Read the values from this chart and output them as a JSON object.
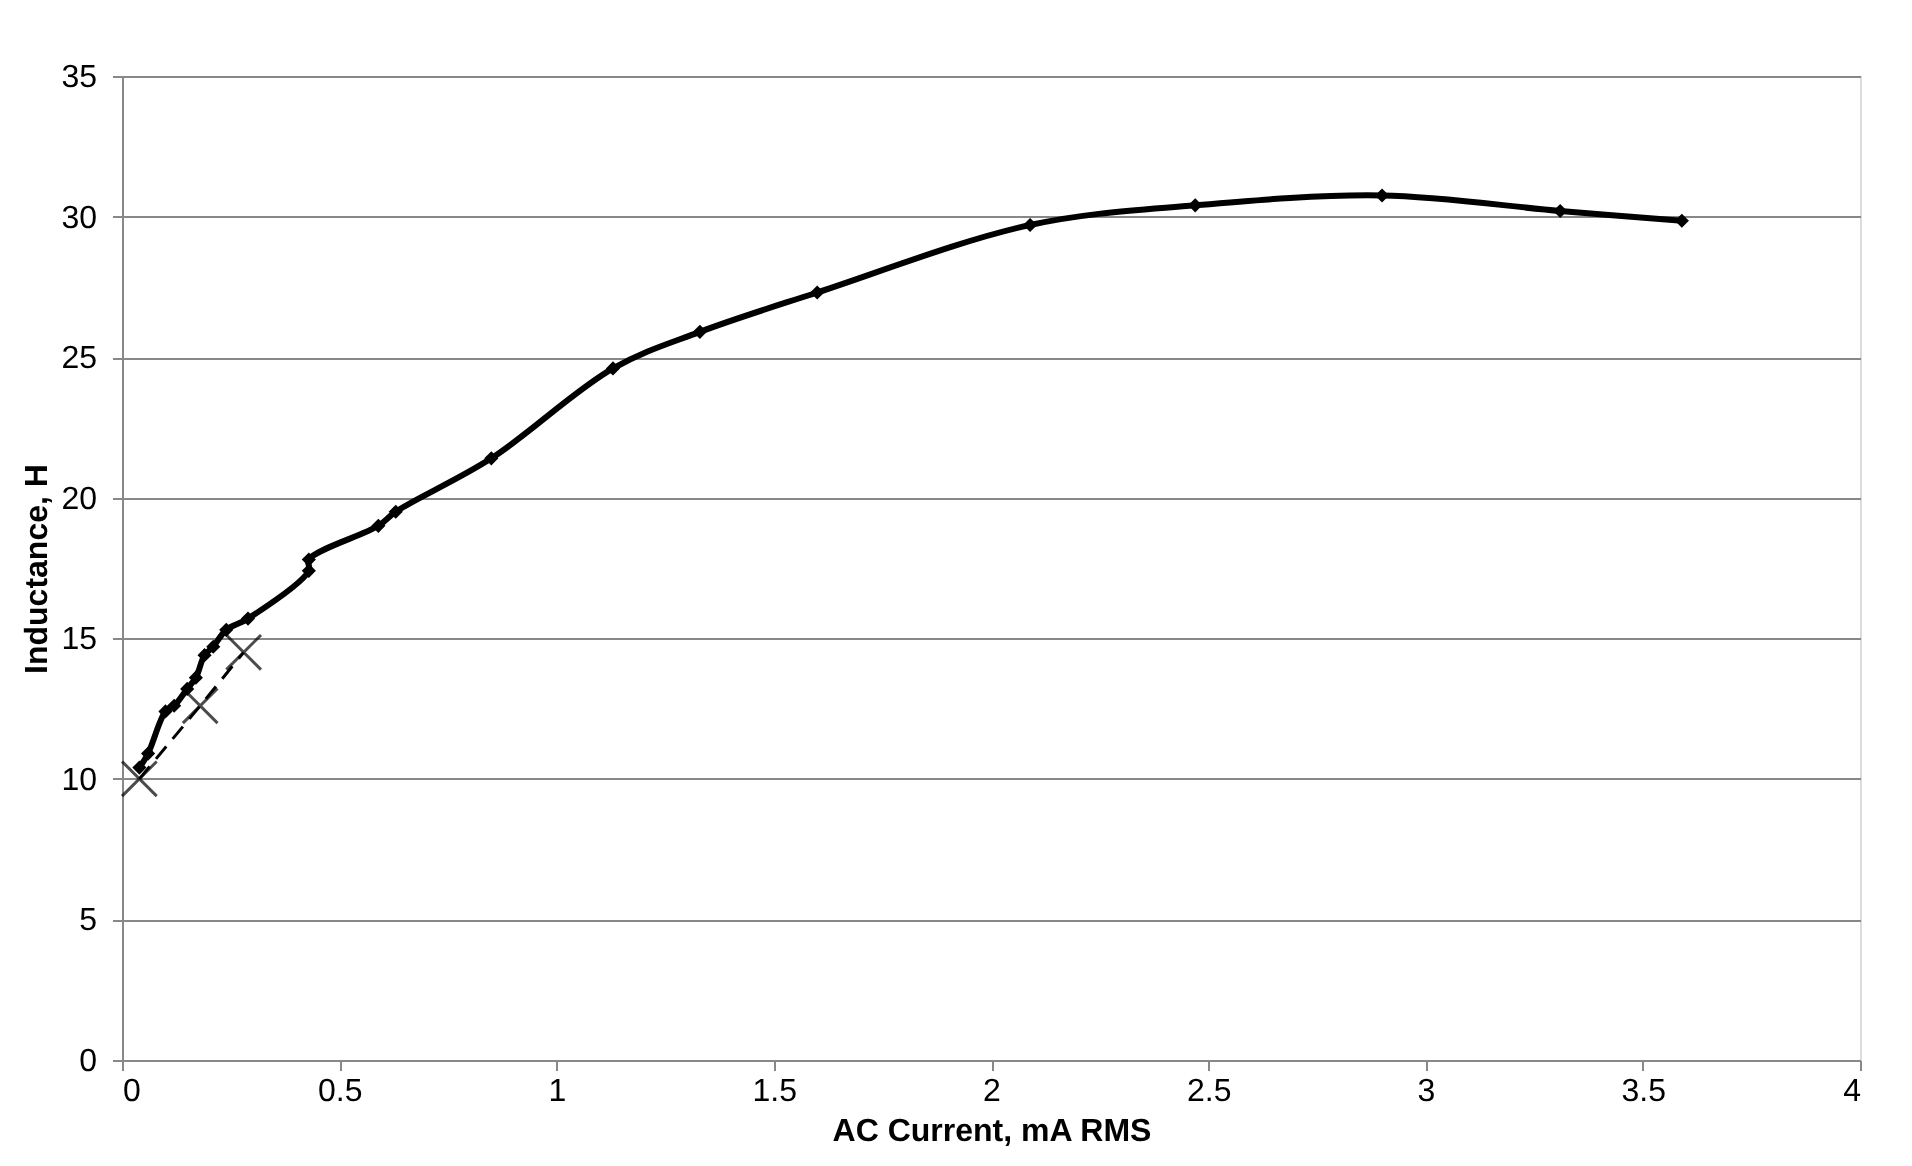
{
  "chart_data": {
    "type": "line",
    "xlabel": "AC Current, mA RMS",
    "ylabel": "Inductance, H",
    "xlim": [
      0,
      4
    ],
    "xticks": [
      0,
      0.5,
      1,
      1.5,
      2,
      2.5,
      3,
      3.5,
      4
    ],
    "ylim": [
      0,
      35
    ],
    "yticks": [
      0,
      5,
      10,
      15,
      20,
      25,
      30,
      35
    ],
    "grid": "y",
    "series": [
      {
        "color": "#000000",
        "marker": "diamond",
        "line_style": "solid",
        "x": [
          0.04,
          0.06,
          0.1,
          0.12,
          0.15,
          0.17,
          0.19,
          0.21,
          0.24,
          0.29,
          0.43,
          0.43,
          0.59,
          0.63,
          0.85,
          1.13,
          1.33,
          1.6,
          2.09,
          2.47,
          2.9,
          3.31,
          3.59
        ],
        "values": [
          10.4,
          10.9,
          12.4,
          12.6,
          13.2,
          13.6,
          14.4,
          14.7,
          15.3,
          15.7,
          17.4,
          17.8,
          19.0,
          19.5,
          21.4,
          24.6,
          25.9,
          27.3,
          29.7,
          30.4,
          30.75,
          30.2,
          29.85
        ]
      },
      {
        "color": "#000000",
        "marker": "cross",
        "line_style": "dashed",
        "x": [
          0.04,
          0.18,
          0.28
        ],
        "values": [
          10.0,
          12.6,
          14.5
        ]
      }
    ]
  }
}
